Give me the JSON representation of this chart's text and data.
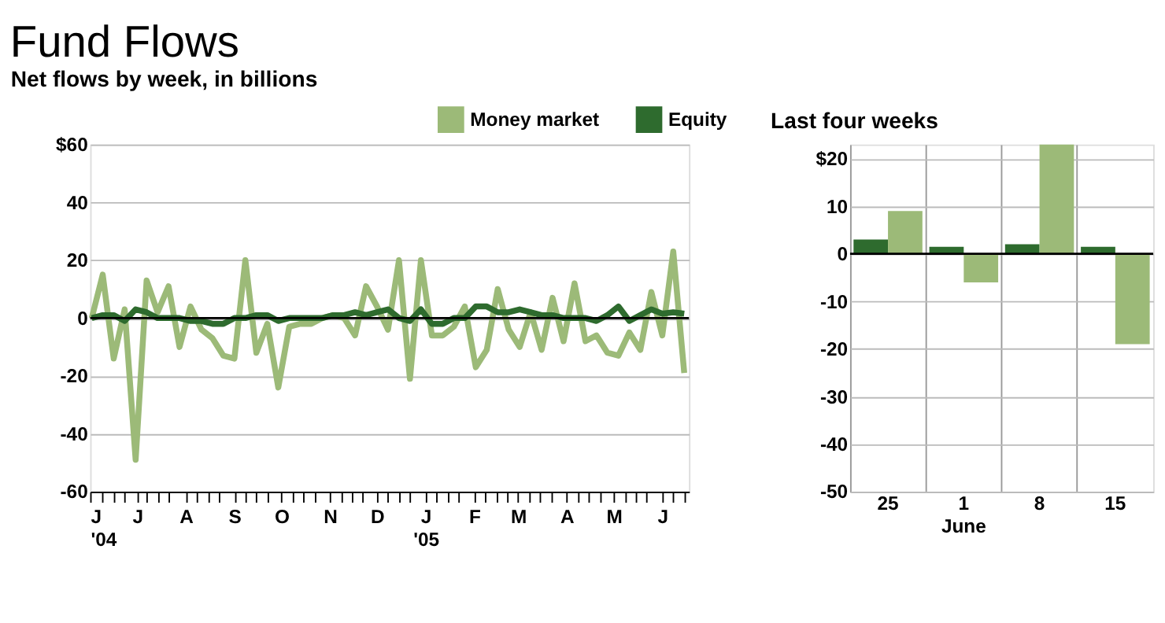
{
  "chart_data": [
    {
      "type": "line",
      "title": "Fund Flows",
      "subtitle": "Net flows by week, in billions",
      "x": [
        "2004-06-02",
        "2004-06-09",
        "2004-06-16",
        "2004-06-23",
        "2004-06-30",
        "2004-07-07",
        "2004-07-14",
        "2004-07-21",
        "2004-07-28",
        "2004-08-04",
        "2004-08-11",
        "2004-08-18",
        "2004-08-25",
        "2004-09-01",
        "2004-09-08",
        "2004-09-15",
        "2004-09-22",
        "2004-09-29",
        "2004-10-06",
        "2004-10-13",
        "2004-10-20",
        "2004-10-27",
        "2004-11-03",
        "2004-11-10",
        "2004-11-17",
        "2004-11-24",
        "2004-12-01",
        "2004-12-08",
        "2004-12-15",
        "2004-12-22",
        "2004-12-29",
        "2005-01-05",
        "2005-01-12",
        "2005-01-19",
        "2005-01-26",
        "2005-02-02",
        "2005-02-09",
        "2005-02-16",
        "2005-02-23",
        "2005-03-02",
        "2005-03-09",
        "2005-03-16",
        "2005-03-23",
        "2005-03-30",
        "2005-04-06",
        "2005-04-13",
        "2005-04-20",
        "2005-04-27",
        "2005-05-04",
        "2005-05-11",
        "2005-05-18",
        "2005-05-25",
        "2005-06-01",
        "2005-06-08",
        "2005-06-15"
      ],
      "series": [
        {
          "name": "Money market",
          "color": "#9cba78",
          "values": [
            0,
            15,
            -14,
            3,
            -49,
            13,
            2,
            11,
            -10,
            4,
            -4,
            -7,
            -13,
            -14,
            20,
            -12,
            -2,
            -24,
            -3,
            -2,
            -2,
            0,
            1,
            0,
            -6,
            11,
            4,
            -4,
            20,
            -21,
            20,
            -6,
            -6,
            -3,
            4,
            -17,
            -11,
            10,
            -4,
            -10,
            2,
            -11,
            7,
            -8,
            12,
            -8,
            -6,
            -12,
            -13,
            -5,
            -11,
            9,
            -6,
            23,
            -19
          ]
        },
        {
          "name": "Equity",
          "color": "#2e6b2e",
          "values": [
            0,
            1,
            1,
            -1,
            3,
            2,
            0,
            0,
            0,
            -1,
            -1,
            -2,
            -2,
            0,
            0,
            1,
            1,
            -1,
            0,
            0,
            0,
            0,
            1,
            1,
            2,
            1,
            2,
            3,
            0,
            -1,
            3,
            -2,
            -2,
            0,
            0,
            4,
            4,
            2,
            2,
            3,
            2,
            1,
            1,
            0,
            0,
            0,
            -1,
            1,
            4,
            -1,
            1,
            3,
            1.5,
            2,
            1.5
          ]
        }
      ],
      "xlim": [
        "2004-06-01",
        "2005-06-18"
      ],
      "xticks": [
        {
          "value": "2004-06-01",
          "label": "J\n'04"
        },
        {
          "value": "2004-07-01",
          "label": "J"
        },
        {
          "value": "2004-08-01",
          "label": "A"
        },
        {
          "value": "2004-09-01",
          "label": "S"
        },
        {
          "value": "2004-10-01",
          "label": "O"
        },
        {
          "value": "2004-11-01",
          "label": "N"
        },
        {
          "value": "2004-12-01",
          "label": "D"
        },
        {
          "value": "2005-01-01",
          "label": "J\n'05"
        },
        {
          "value": "2005-02-01",
          "label": "F"
        },
        {
          "value": "2005-03-01",
          "label": "M"
        },
        {
          "value": "2005-04-01",
          "label": "A"
        },
        {
          "value": "2005-05-01",
          "label": "M"
        },
        {
          "value": "2005-06-01",
          "label": "J"
        },
        {
          "value": "2004-06-09",
          "label": null
        },
        {
          "value": "2004-06-16",
          "label": null
        },
        {
          "value": "2004-06-23",
          "label": null
        },
        {
          "value": "2004-07-07",
          "label": null
        },
        {
          "value": "2004-07-14",
          "label": null
        },
        {
          "value": "2004-07-21",
          "label": null
        },
        {
          "value": "2004-08-08",
          "label": null
        },
        {
          "value": "2004-08-15",
          "label": null
        },
        {
          "value": "2004-08-22",
          "label": null
        },
        {
          "value": "2004-09-08",
          "label": null
        },
        {
          "value": "2004-09-15",
          "label": null
        },
        {
          "value": "2004-09-22",
          "label": null
        },
        {
          "value": "2004-10-08",
          "label": null
        },
        {
          "value": "2004-10-15",
          "label": null
        },
        {
          "value": "2004-10-22",
          "label": null
        },
        {
          "value": "2004-11-08",
          "label": null
        },
        {
          "value": "2004-11-15",
          "label": null
        },
        {
          "value": "2004-11-22",
          "label": null
        },
        {
          "value": "2004-12-08",
          "label": null
        },
        {
          "value": "2004-12-15",
          "label": null
        },
        {
          "value": "2004-12-22",
          "label": null
        },
        {
          "value": "2005-01-08",
          "label": null
        },
        {
          "value": "2005-01-15",
          "label": null
        },
        {
          "value": "2005-01-22",
          "label": null
        },
        {
          "value": "2005-02-08",
          "label": null
        },
        {
          "value": "2005-02-15",
          "label": null
        },
        {
          "value": "2005-02-22",
          "label": null
        },
        {
          "value": "2005-03-08",
          "label": null
        },
        {
          "value": "2005-03-15",
          "label": null
        },
        {
          "value": "2005-03-22",
          "label": null
        },
        {
          "value": "2005-04-08",
          "label": null
        },
        {
          "value": "2005-04-15",
          "label": null
        },
        {
          "value": "2005-04-22",
          "label": null
        },
        {
          "value": "2005-05-08",
          "label": null
        },
        {
          "value": "2005-05-15",
          "label": null
        },
        {
          "value": "2005-05-22",
          "label": null
        },
        {
          "value": "2005-06-08",
          "label": null
        },
        {
          "value": "2005-06-15",
          "label": null
        }
      ],
      "ylim": [
        -60,
        60
      ],
      "yticks": [
        -60,
        -40,
        -20,
        0,
        20,
        40,
        {
          "value": 60,
          "label": "$60"
        }
      ],
      "grid": "y",
      "legend": "top right",
      "ref_lines": [
        {
          "axis": "y",
          "value": 0,
          "color": "#000000"
        }
      ]
    },
    {
      "type": "bar",
      "title": "Last four weeks",
      "categories": [
        "25",
        "1\nJune",
        "8",
        "15"
      ],
      "series": [
        {
          "color": "#2e6b2e",
          "values": [
            3,
            1.5,
            2,
            1.5
          ]
        },
        {
          "color": "#9cba78",
          "values": [
            9,
            -6,
            23,
            -19
          ]
        }
      ],
      "ylim": [
        -50,
        23
      ],
      "yticks": [
        -50,
        -40,
        -30,
        -20,
        -10,
        0,
        10,
        {
          "value": 20,
          "label": "$20"
        }
      ],
      "grid": true,
      "ref_lines": [
        {
          "axis": "y",
          "value": 0,
          "color": "#000000"
        }
      ]
    }
  ]
}
